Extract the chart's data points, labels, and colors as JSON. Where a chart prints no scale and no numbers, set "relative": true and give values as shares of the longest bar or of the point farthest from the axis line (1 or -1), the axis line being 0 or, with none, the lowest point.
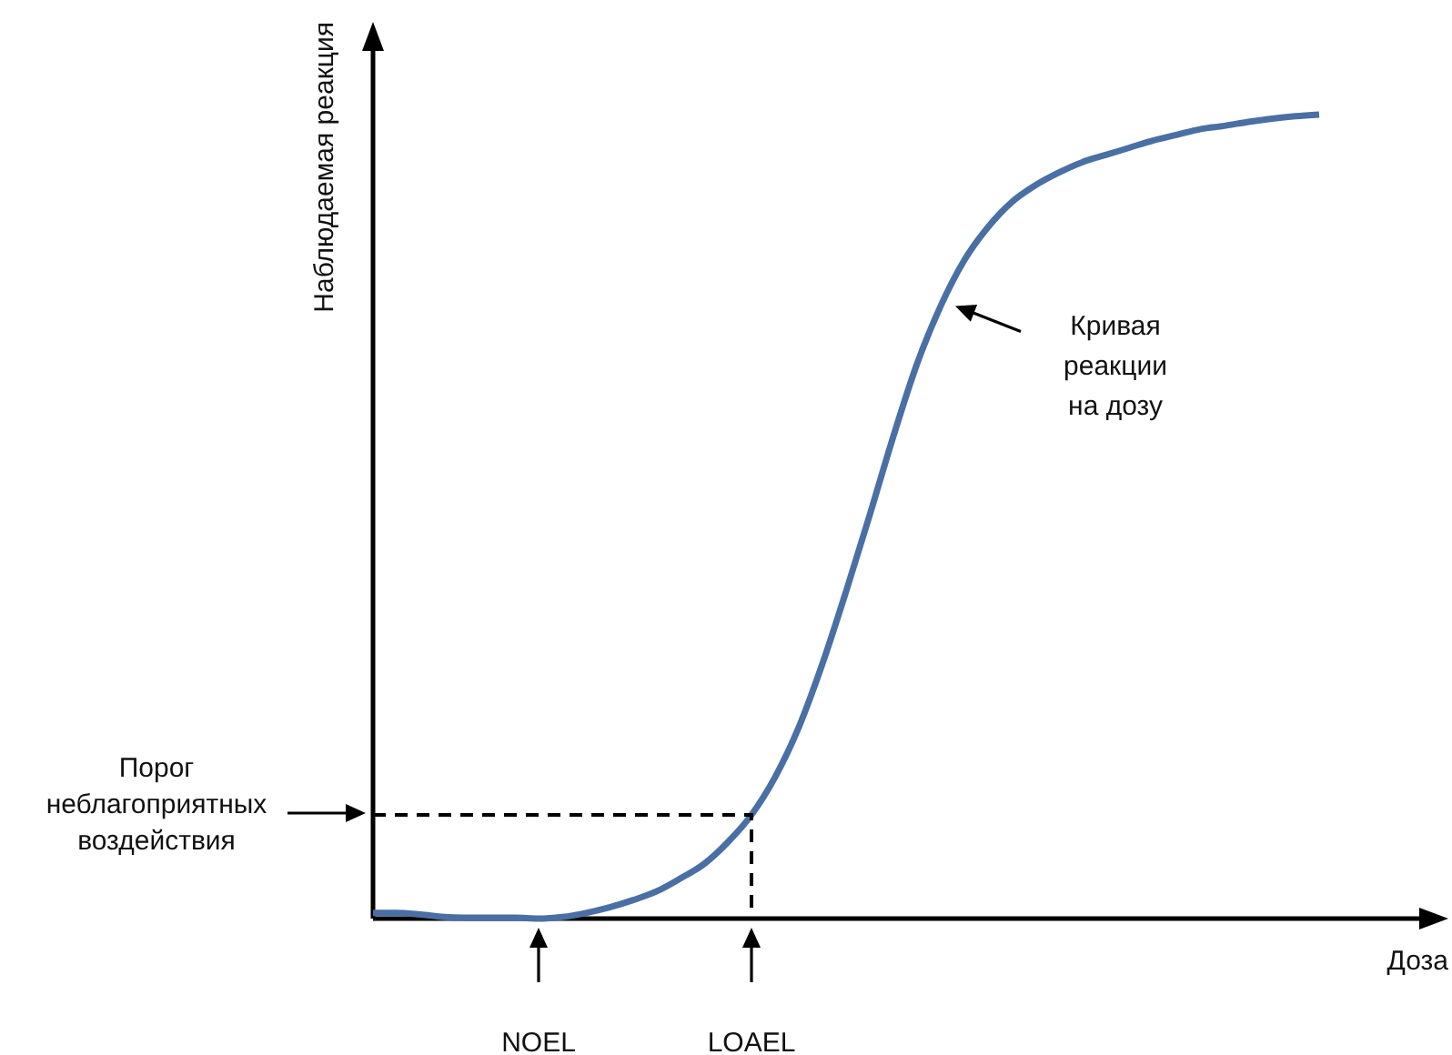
{
  "chart_data": {
    "type": "line",
    "relative": true,
    "xlabel": "Доза",
    "ylabel": "Наблюдаемая реакция",
    "categories": [
      null,
      null,
      null,
      null,
      null,
      null,
      null,
      null,
      null,
      null,
      null,
      null,
      null,
      null,
      null,
      null,
      null,
      null,
      null,
      null,
      null,
      null,
      null,
      null,
      null,
      null,
      null,
      null,
      null,
      null,
      null,
      null,
      null,
      null,
      null,
      null,
      null,
      null,
      null,
      null,
      null
    ],
    "series": [
      {
        "color": "#4a6fa5",
        "values": [
          0.007,
          0.007,
          0.005,
          0.002,
          0.001,
          0.001,
          0.001,
          0,
          0.002,
          0.007,
          0.014,
          0.023,
          0.034,
          0.05,
          0.068,
          0.095,
          0.129,
          0.176,
          0.238,
          0.317,
          0.407,
          0.502,
          0.6,
          0.69,
          0.762,
          0.819,
          0.86,
          0.891,
          0.912,
          0.928,
          0.941,
          0.95,
          0.959,
          0.968,
          0.975,
          0.982,
          0.986,
          0.991,
          0.995,
          0.998,
          1
        ]
      }
    ],
    "ref_lines": [
      {
        "axis": "y",
        "value": 0.129,
        "label": "Порог\nнеблагоприятных\nвоздействия",
        "line_style": "dashed",
        "color": "#000000"
      }
    ],
    "annotations": [
      "NOEL",
      "LOAEL",
      "Кривая\nреакции\nна дозу"
    ],
    "marker": "none",
    "line_style": "solid"
  }
}
